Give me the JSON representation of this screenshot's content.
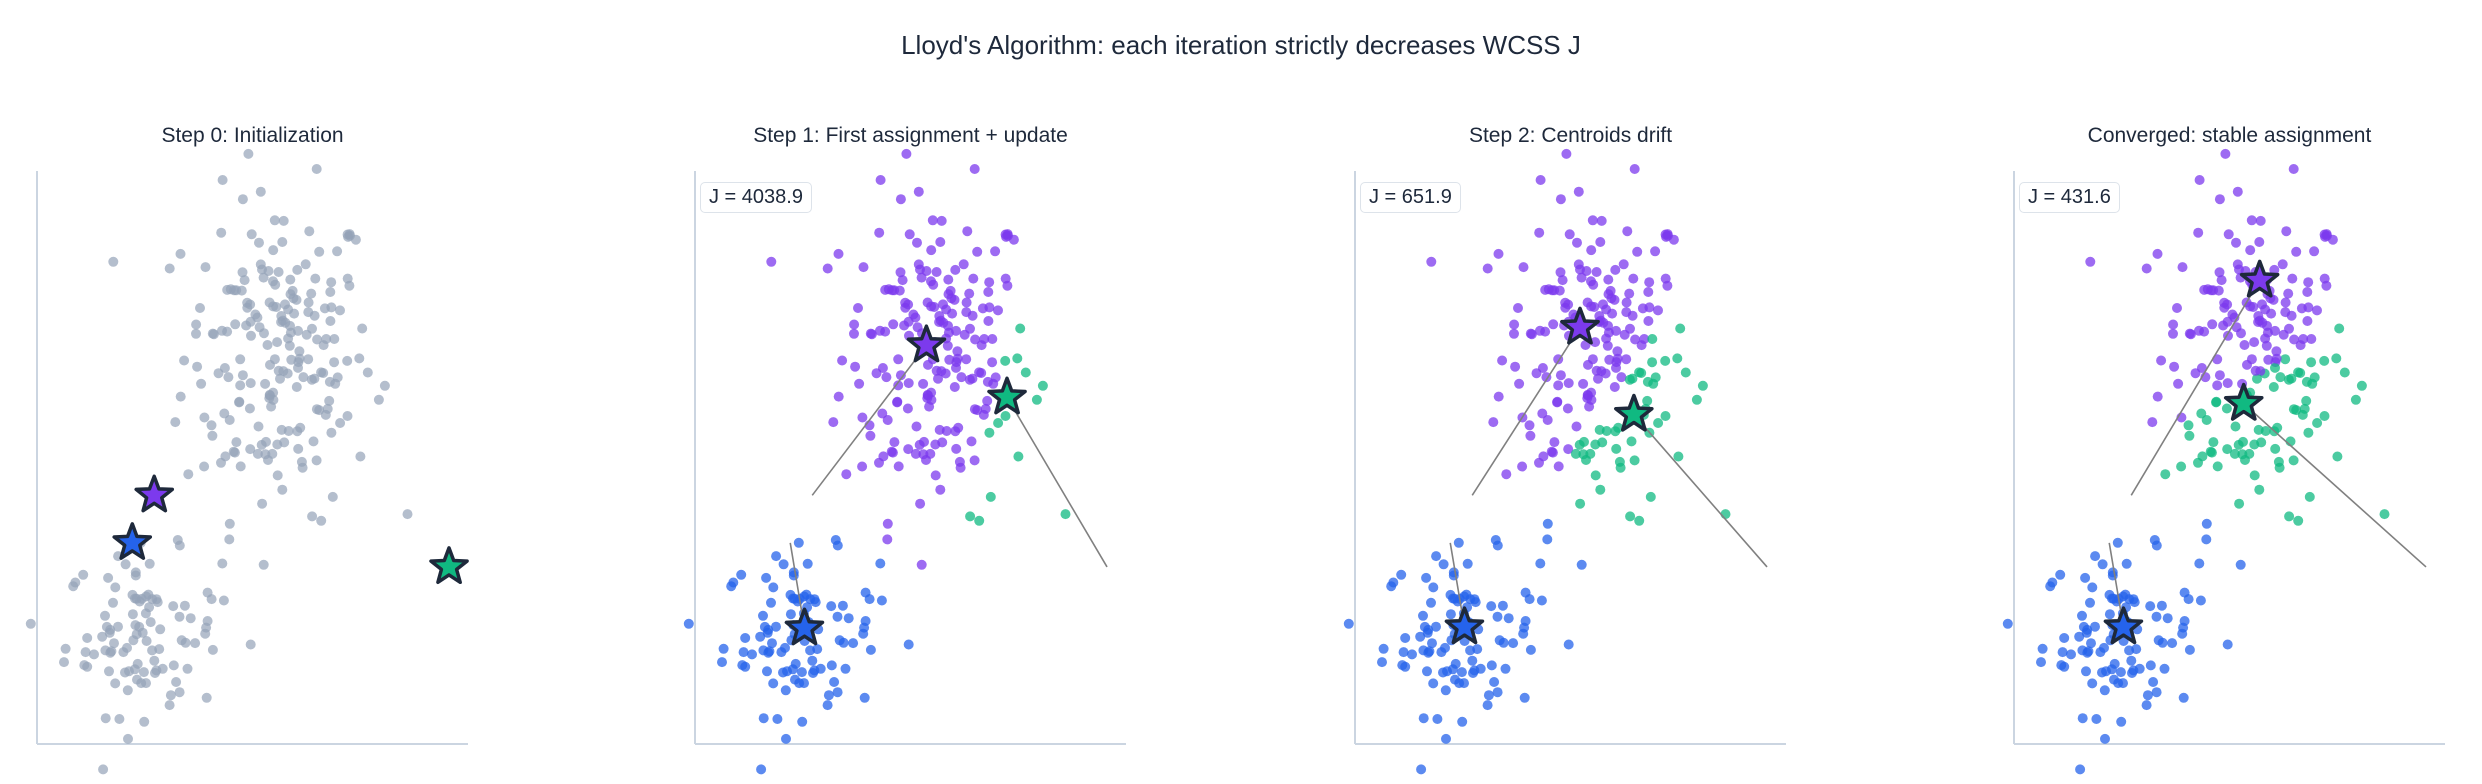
{
  "title": "Lloyd's Algorithm: each iteration strictly decreases WCSS J",
  "colors": {
    "unassigned": "#94a3b8",
    "cluster_0": "#7c3aed",
    "cluster_1": "#2563eb",
    "cluster_2": "#10b981",
    "star_edge": "#1e293b",
    "path": "#808080",
    "axis": "#cbd5e1"
  },
  "chart_data": [
    {
      "type": "scatter",
      "title": "Step 0: Initialization",
      "J_label": "",
      "xlim": [
        0,
        100
      ],
      "ylim": [
        0,
        100
      ],
      "grid": false,
      "colored_by_assignment": false,
      "centroids": [
        {
          "x": 27.2,
          "y": 43.4
        },
        {
          "x": 22.1,
          "y": 35.1
        },
        {
          "x": 95.6,
          "y": 30.9
        }
      ]
    },
    {
      "type": "scatter",
      "title": "Step 1: First assignment + update",
      "J_label": "J = 4038.9",
      "xlim": [
        0,
        100
      ],
      "ylim": [
        0,
        100
      ],
      "grid": false,
      "colored_by_assignment": true,
      "centroids": [
        {
          "x": 53.7,
          "y": 69.6
        },
        {
          "x": 25.4,
          "y": 20.2
        },
        {
          "x": 72.4,
          "y": 60.5
        }
      ]
    },
    {
      "type": "scatter",
      "title": "Step 2: Centroids drift",
      "J_label": "J = 651.9",
      "xlim": [
        0,
        100
      ],
      "ylim": [
        0,
        100
      ],
      "grid": false,
      "colored_by_assignment": true,
      "centroids": [
        {
          "x": 52.2,
          "y": 72.7
        },
        {
          "x": 25.4,
          "y": 20.4
        },
        {
          "x": 64.7,
          "y": 57.5
        }
      ]
    },
    {
      "type": "scatter",
      "title": "Converged: stable assignment",
      "J_label": "J = 431.6",
      "xlim": [
        0,
        100
      ],
      "ylim": [
        0,
        100
      ],
      "grid": false,
      "colored_by_assignment": true,
      "centroids": [
        {
          "x": 57.0,
          "y": 80.9
        },
        {
          "x": 25.4,
          "y": 20.4
        },
        {
          "x": 53.3,
          "y": 59.4
        }
      ]
    }
  ],
  "point_clusters": [
    {
      "center": {
        "x": 56,
        "y": 68
      },
      "sd": {
        "x": 11,
        "y": 14
      },
      "n": 200
    },
    {
      "center": {
        "x": 24.6,
        "y": 19.3
      },
      "sd": {
        "x": 9,
        "y": 7
      },
      "n": 100
    }
  ]
}
